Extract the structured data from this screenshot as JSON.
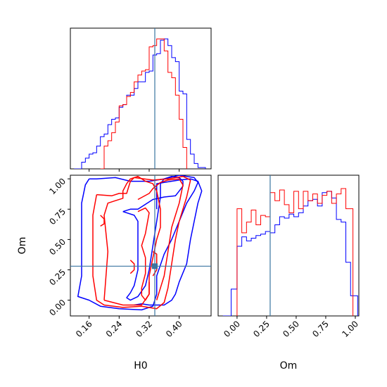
{
  "chart_data": {
    "type": "corner",
    "parameters": [
      "H0",
      "Om"
    ],
    "colors": {
      "series_a": "#0000ff",
      "series_b": "#ff0000",
      "truth": "#3a75a0"
    },
    "truth": {
      "H0": 0.335,
      "Om": 0.28
    },
    "panels": [
      {
        "id": "hist-h0",
        "type": "step-histogram",
        "xlim": [
          0.11,
          0.485
        ],
        "ylim": [
          0,
          1.05
        ],
        "series": [
          {
            "color": "#0000ff",
            "x": [
              0.12,
              0.14,
              0.15,
              0.16,
              0.17,
              0.18,
              0.19,
              0.2,
              0.21,
              0.22,
              0.23,
              0.24,
              0.25,
              0.26,
              0.27,
              0.28,
              0.29,
              0.3,
              0.31,
              0.32,
              0.33,
              0.34,
              0.35,
              0.36,
              0.37,
              0.38,
              0.39,
              0.4,
              0.41,
              0.42,
              0.43,
              0.44,
              0.45,
              0.47
            ],
            "values": [
              0.0,
              0.05,
              0.08,
              0.11,
              0.12,
              0.17,
              0.24,
              0.26,
              0.33,
              0.37,
              0.38,
              0.46,
              0.48,
              0.55,
              0.55,
              0.6,
              0.65,
              0.65,
              0.72,
              0.73,
              0.85,
              0.86,
              0.96,
              0.97,
              0.92,
              0.83,
              0.8,
              0.58,
              0.56,
              0.22,
              0.11,
              0.04,
              0.01,
              0.0
            ]
          },
          {
            "color": "#ff0000",
            "x": [
              0.19,
              0.2,
              0.21,
              0.22,
              0.23,
              0.24,
              0.25,
              0.26,
              0.27,
              0.28,
              0.29,
              0.3,
              0.31,
              0.32,
              0.33,
              0.34,
              0.35,
              0.36,
              0.37,
              0.38,
              0.39,
              0.4,
              0.41,
              0.42
            ],
            "values": [
              0.0,
              0.17,
              0.21,
              0.27,
              0.35,
              0.47,
              0.48,
              0.54,
              0.57,
              0.65,
              0.7,
              0.73,
              0.74,
              0.91,
              0.92,
              0.97,
              0.97,
              0.88,
              0.72,
              0.68,
              0.55,
              0.37,
              0.16,
              0.0
            ]
          }
        ]
      },
      {
        "id": "contour-h0-om",
        "type": "contour",
        "xlim": [
          0.11,
          0.485
        ],
        "ylim": [
          -0.13,
          1.03
        ],
        "xticks": [
          "0.16",
          "0.24",
          "0.32",
          "0.40"
        ],
        "yticks": [
          "0.00",
          "0.25",
          "0.50",
          "0.75",
          "1.00"
        ],
        "xlabel": "H0",
        "ylabel": "Om",
        "levels": [
          {
            "color": "#0000ff",
            "points": [
              [
                0.16,
                1.0
              ],
              [
                0.18,
                1.0
              ],
              [
                0.23,
                1.01
              ],
              [
                0.27,
                0.98
              ],
              [
                0.32,
                0.98
              ],
              [
                0.36,
                1.0
              ],
              [
                0.4,
                1.03
              ],
              [
                0.44,
                1.01
              ],
              [
                0.45,
                0.97
              ],
              [
                0.44,
                0.9
              ],
              [
                0.42,
                0.8
              ],
              [
                0.4,
                0.65
              ],
              [
                0.38,
                0.5
              ],
              [
                0.36,
                0.38
              ],
              [
                0.34,
                0.2
              ],
              [
                0.34,
                0.05
              ],
              [
                0.33,
                -0.05
              ],
              [
                0.3,
                -0.08
              ],
              [
                0.24,
                -0.07
              ],
              [
                0.19,
                -0.05
              ],
              [
                0.16,
                0.0
              ],
              [
                0.13,
                0.03
              ],
              [
                0.14,
                0.2
              ],
              [
                0.14,
                0.5
              ],
              [
                0.14,
                0.8
              ],
              [
                0.15,
                0.95
              ],
              [
                0.16,
                1.0
              ]
            ]
          },
          {
            "color": "#0000ff",
            "points": [
              [
                0.25,
                0.73
              ],
              [
                0.27,
                0.75
              ],
              [
                0.29,
                0.75
              ],
              [
                0.31,
                0.79
              ],
              [
                0.33,
                0.83
              ],
              [
                0.36,
                0.85
              ],
              [
                0.39,
                0.86
              ],
              [
                0.4,
                0.9
              ],
              [
                0.41,
                0.94
              ],
              [
                0.41,
                0.98
              ],
              [
                0.4,
                1.01
              ],
              [
                0.38,
                1.02
              ],
              [
                0.36,
                1.0
              ],
              [
                0.35,
                0.96
              ],
              [
                0.35,
                0.85
              ],
              [
                0.34,
                0.65
              ],
              [
                0.33,
                0.45
              ],
              [
                0.32,
                0.25
              ],
              [
                0.31,
                0.12
              ],
              [
                0.29,
                0.03
              ],
              [
                0.27,
                0.0
              ],
              [
                0.26,
                0.02
              ],
              [
                0.27,
                0.06
              ],
              [
                0.28,
                0.12
              ],
              [
                0.29,
                0.25
              ],
              [
                0.29,
                0.4
              ],
              [
                0.29,
                0.55
              ],
              [
                0.29,
                0.65
              ],
              [
                0.28,
                0.7
              ],
              [
                0.25,
                0.73
              ]
            ]
          },
          {
            "color": "#0000ff",
            "points": [
              [
                0.28,
                -0.04
              ],
              [
                0.3,
                -0.03
              ],
              [
                0.32,
                -0.04
              ],
              [
                0.36,
                -0.04
              ],
              [
                0.38,
                0.0
              ],
              [
                0.39,
                0.05
              ],
              [
                0.4,
                0.15
              ],
              [
                0.42,
                0.3
              ],
              [
                0.43,
                0.5
              ],
              [
                0.44,
                0.65
              ],
              [
                0.45,
                0.8
              ],
              [
                0.46,
                0.9
              ],
              [
                0.45,
                0.98
              ],
              [
                0.43,
                1.0
              ],
              [
                0.4,
                0.99
              ],
              [
                0.36,
                0.97
              ],
              [
                0.34,
                0.96
              ],
              [
                0.34,
                0.9
              ],
              [
                0.34,
                0.75
              ]
            ]
          },
          {
            "color": "#ff0000",
            "points": [
              [
                0.18,
                0.87
              ],
              [
                0.22,
                0.86
              ],
              [
                0.24,
                0.88
              ],
              [
                0.26,
                0.88
              ],
              [
                0.27,
                0.98
              ],
              [
                0.28,
                1.01
              ],
              [
                0.33,
                0.99
              ],
              [
                0.37,
                1.0
              ],
              [
                0.41,
                1.02
              ],
              [
                0.43,
                0.99
              ],
              [
                0.42,
                0.85
              ],
              [
                0.4,
                0.65
              ],
              [
                0.39,
                0.5
              ],
              [
                0.38,
                0.3
              ],
              [
                0.37,
                0.1
              ],
              [
                0.36,
                -0.02
              ],
              [
                0.34,
                -0.07
              ],
              [
                0.3,
                -0.05
              ],
              [
                0.25,
                -0.06
              ],
              [
                0.2,
                -0.04
              ],
              [
                0.18,
                0.0
              ],
              [
                0.17,
                0.2
              ],
              [
                0.17,
                0.5
              ],
              [
                0.17,
                0.7
              ],
              [
                0.18,
                0.87
              ]
            ]
          },
          {
            "color": "#ff0000",
            "points": [
              [
                0.2,
                0.0
              ],
              [
                0.21,
                0.4
              ],
              [
                0.2,
                0.7
              ],
              [
                0.21,
                0.8
              ],
              [
                0.23,
                0.82
              ],
              [
                0.25,
                0.84
              ],
              [
                0.25,
                0.9
              ],
              [
                0.26,
                0.96
              ],
              [
                0.27,
                1.0
              ],
              [
                0.29,
                1.02
              ],
              [
                0.31,
                0.98
              ],
              [
                0.33,
                0.96
              ],
              [
                0.34,
                0.9
              ],
              [
                0.35,
                0.75
              ],
              [
                0.35,
                0.6
              ],
              [
                0.34,
                0.5
              ],
              [
                0.33,
                0.35
              ],
              [
                0.32,
                0.2
              ],
              [
                0.32,
                0.05
              ],
              [
                0.3,
                -0.04
              ],
              [
                0.25,
                -0.04
              ],
              [
                0.2,
                0.0
              ]
            ]
          },
          {
            "color": "#ff0000",
            "points": [
              [
                0.29,
                0.83
              ],
              [
                0.32,
                0.88
              ],
              [
                0.33,
                0.92
              ],
              [
                0.35,
                0.97
              ],
              [
                0.37,
                0.99
              ],
              [
                0.4,
                1.0
              ],
              [
                0.41,
                0.95
              ],
              [
                0.4,
                0.8
              ],
              [
                0.38,
                0.6
              ],
              [
                0.37,
                0.4
              ],
              [
                0.36,
                0.2
              ],
              [
                0.35,
                0.1
              ],
              [
                0.34,
                0.0
              ]
            ]
          },
          {
            "color": "#ff0000",
            "points": [
              [
                0.29,
                0.73
              ],
              [
                0.31,
                0.76
              ],
              [
                0.32,
                0.72
              ],
              [
                0.31,
                0.55
              ],
              [
                0.3,
                0.45
              ],
              [
                0.31,
                0.35
              ],
              [
                0.31,
                0.22
              ],
              [
                0.3,
                0.1
              ],
              [
                0.3,
                0.04
              ],
              [
                0.31,
                0.0
              ],
              [
                0.32,
                0.05
              ],
              [
                0.32,
                0.15
              ]
            ]
          },
          {
            "color": "#ff0000",
            "points": [
              [
                0.19,
                0.7
              ],
              [
                0.2,
                0.67
              ],
              [
                0.2,
                0.63
              ],
              [
                0.19,
                0.61
              ]
            ]
          },
          {
            "color": "#ff0000",
            "points": [
              [
                0.27,
                0.33
              ],
              [
                0.28,
                0.3
              ],
              [
                0.28,
                0.25
              ],
              [
                0.27,
                0.22
              ]
            ]
          },
          {
            "color": "#ff0000",
            "points": [
              [
                0.33,
                0.4
              ],
              [
                0.34,
                0.38
              ],
              [
                0.34,
                0.25
              ],
              [
                0.33,
                0.2
              ]
            ]
          }
        ],
        "marker": {
          "x": 0.335,
          "y": 0.28
        }
      },
      {
        "id": "hist-om",
        "type": "step-histogram",
        "xlim": [
          -0.16,
          1.03
        ],
        "ylim": [
          0,
          1.05
        ],
        "xticks": [
          "0.00",
          "0.25",
          "0.50",
          "0.75",
          "1.00"
        ],
        "xlabel": "Om",
        "series": [
          {
            "color": "#0000ff",
            "x": [
              -0.12,
              -0.05,
              0.0,
              0.04,
              0.08,
              0.12,
              0.16,
              0.2,
              0.24,
              0.28,
              0.32,
              0.36,
              0.4,
              0.44,
              0.48,
              0.52,
              0.56,
              0.6,
              0.64,
              0.68,
              0.72,
              0.76,
              0.8,
              0.84,
              0.88,
              0.92,
              0.96,
              1.02
            ],
            "values": [
              0.0,
              0.2,
              0.52,
              0.59,
              0.56,
              0.58,
              0.6,
              0.61,
              0.63,
              0.62,
              0.68,
              0.74,
              0.73,
              0.76,
              0.74,
              0.77,
              0.82,
              0.86,
              0.87,
              0.82,
              0.92,
              0.93,
              0.88,
              0.72,
              0.7,
              0.4,
              0.15,
              0.0
            ]
          },
          {
            "color": "#ff0000",
            "x": [
              0.0,
              0.04,
              0.08,
              0.12,
              0.16,
              0.2,
              0.24,
              0.28,
              0.32,
              0.36,
              0.4,
              0.44,
              0.48,
              0.52,
              0.56,
              0.6,
              0.64,
              0.68,
              0.72,
              0.76,
              0.8,
              0.84,
              0.88,
              0.92,
              0.98
            ],
            "values": [
              0.8,
              0.62,
              0.7,
              0.79,
              0.68,
              0.75,
              0.74,
              0.92,
              0.86,
              0.94,
              0.83,
              0.77,
              0.93,
              0.8,
              0.93,
              0.86,
              0.91,
              0.84,
              0.9,
              0.93,
              0.84,
              0.91,
              0.95,
              0.8,
              0.0
            ]
          }
        ]
      }
    ]
  }
}
